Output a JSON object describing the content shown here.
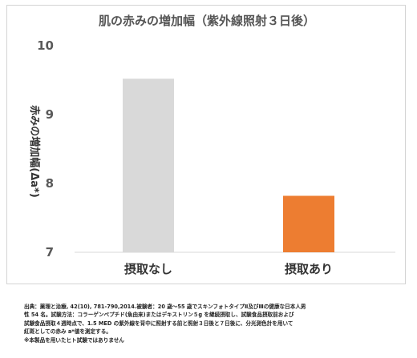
{
  "chart_data": {
    "type": "bar",
    "title": "肌の赤みの増加幅（紫外線照射３日後）",
    "ylabel": "赤みの増加幅(Δa*)",
    "xlabel": "",
    "categories": [
      "摂取なし",
      "摂取あり"
    ],
    "values": [
      9.52,
      7.82
    ],
    "colors": [
      "#d9d9d9",
      "#ed7d31"
    ],
    "ylim": [
      7,
      10
    ],
    "yticks": [
      "7",
      "8",
      "9",
      "10"
    ],
    "grid": false,
    "legend": "none"
  },
  "footnotes": [
    "出典：薬理と治療, 42(10), 781-790,2014.被験者：20 歳～55 歳でスキンフォトタイプⅡ及びⅢの健康な日本人男",
    "性 54 名。試験方法：コラーゲンペプチド(魚由来)またはデキストリン５g を継続摂取し、試験食品摂取前および",
    "試験食品摂取４週時点で、1.5 MED の紫外線を背中に照射する前と照射３日後と７日後に、分光測色計を用いて",
    "紅斑としての赤み a*値を測定する。",
    "※本製品を用いたヒト試験ではありません"
  ]
}
